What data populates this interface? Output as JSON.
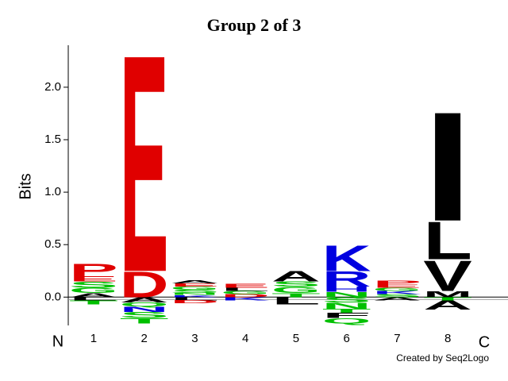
{
  "chart_data": {
    "type": "logo",
    "title": "Group 2 of 3",
    "y_label": "Bits",
    "left_label": "N",
    "right_label": "C",
    "credit": "Created by Seq2Logo",
    "categories": [
      "1",
      "2",
      "3",
      "4",
      "5",
      "6",
      "7",
      "8"
    ],
    "letters": [
      [
        {
          "letter": "A",
          "color": "#000000",
          "value": 0.04
        },
        {
          "letter": "G",
          "color": "#00c000",
          "value": 0.05
        },
        {
          "letter": "S",
          "color": "#00c000",
          "value": 0.06
        },
        {
          "letter": "E",
          "color": "#e00000",
          "value": 0.05
        },
        {
          "letter": "P",
          "color": "#e00000",
          "value": 0.12
        },
        {
          "letter": "L",
          "color": "#000000",
          "value": -0.03
        },
        {
          "letter": "T",
          "color": "#00c000",
          "value": -0.04
        }
      ],
      [
        {
          "letter": "D",
          "color": "#e00000",
          "value": 0.25
        },
        {
          "letter": "E",
          "color": "#e00000",
          "value": 2.13
        },
        {
          "letter": "A",
          "color": "#000000",
          "value": -0.05
        },
        {
          "letter": "Q",
          "color": "#00c000",
          "value": -0.04
        },
        {
          "letter": "N",
          "color": "#0000e0",
          "value": -0.05
        },
        {
          "letter": "S",
          "color": "#00c000",
          "value": -0.06
        },
        {
          "letter": "T",
          "color": "#00c000",
          "value": -0.05
        }
      ],
      [
        {
          "letter": "K",
          "color": "#0000e0",
          "value": 0.02
        },
        {
          "letter": "N",
          "color": "#00c000",
          "value": 0.02
        },
        {
          "letter": "S",
          "color": "#00c000",
          "value": 0.03
        },
        {
          "letter": "G",
          "color": "#00c000",
          "value": 0.03
        },
        {
          "letter": "E",
          "color": "#e00000",
          "value": 0.03
        },
        {
          "letter": "A",
          "color": "#000000",
          "value": 0.03
        },
        {
          "letter": "L",
          "color": "#000000",
          "value": -0.03
        },
        {
          "letter": "D",
          "color": "#e00000",
          "value": -0.03
        }
      ],
      [
        {
          "letter": "D",
          "color": "#e00000",
          "value": 0.03
        },
        {
          "letter": "G",
          "color": "#00c000",
          "value": 0.03
        },
        {
          "letter": "L",
          "color": "#000000",
          "value": 0.03
        },
        {
          "letter": "E",
          "color": "#e00000",
          "value": 0.04
        },
        {
          "letter": "K",
          "color": "#0000e0",
          "value": -0.03
        }
      ],
      [
        {
          "letter": "T",
          "color": "#00c000",
          "value": 0.04
        },
        {
          "letter": "G",
          "color": "#00c000",
          "value": 0.06
        },
        {
          "letter": "S",
          "color": "#00c000",
          "value": 0.05
        },
        {
          "letter": "A",
          "color": "#000000",
          "value": 0.1
        },
        {
          "letter": "L",
          "color": "#000000",
          "value": -0.07
        }
      ],
      [
        {
          "letter": "N",
          "color": "#00c000",
          "value": 0.05
        },
        {
          "letter": "H",
          "color": "#0000e0",
          "value": 0.05
        },
        {
          "letter": "R",
          "color": "#0000e0",
          "value": 0.15
        },
        {
          "letter": "K",
          "color": "#0000e0",
          "value": 0.25
        },
        {
          "letter": "S",
          "color": "#00c000",
          "value": -0.05
        },
        {
          "letter": "N",
          "color": "#00c000",
          "value": -0.06
        },
        {
          "letter": "T",
          "color": "#00c000",
          "value": -0.04
        },
        {
          "letter": "F",
          "color": "#000000",
          "value": -0.05
        },
        {
          "letter": "Q",
          "color": "#00c000",
          "value": -0.05
        }
      ],
      [
        {
          "letter": "S",
          "color": "#00c000",
          "value": 0.03
        },
        {
          "letter": "K",
          "color": "#0000e0",
          "value": 0.03
        },
        {
          "letter": "G",
          "color": "#00c000",
          "value": 0.03
        },
        {
          "letter": "E",
          "color": "#e00000",
          "value": 0.03
        },
        {
          "letter": "P",
          "color": "#e00000",
          "value": 0.04
        },
        {
          "letter": "A",
          "color": "#000000",
          "value": -0.03
        }
      ],
      [
        {
          "letter": "M",
          "color": "#000000",
          "value": 0.06
        },
        {
          "letter": "V",
          "color": "#000000",
          "value": 0.3
        },
        {
          "letter": "L",
          "color": "#000000",
          "value": 0.37
        },
        {
          "letter": "I",
          "color": "#000000",
          "value": 1.07
        },
        {
          "letter": "T",
          "color": "#00c000",
          "value": -0.03
        },
        {
          "letter": "A",
          "color": "#000000",
          "value": -0.09
        }
      ]
    ],
    "ylim": [
      -0.27,
      2.4
    ],
    "yticks": [
      {
        "value": 0,
        "label": "0.0"
      },
      {
        "value": 0.5,
        "label": "0.5"
      },
      {
        "value": 1,
        "label": "1.0"
      },
      {
        "value": 1.5,
        "label": "1.5"
      },
      {
        "value": 2,
        "label": "2.0"
      }
    ]
  }
}
